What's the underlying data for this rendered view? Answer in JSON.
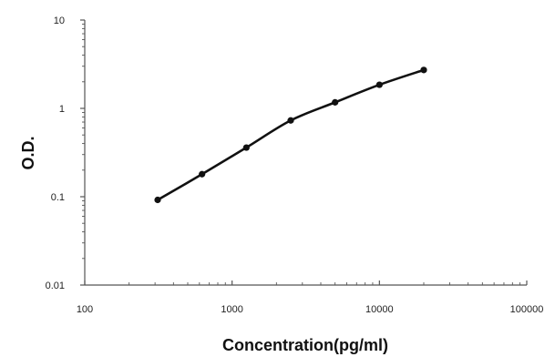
{
  "chart_data": {
    "type": "scatter",
    "title": "",
    "xlabel": "Concentration(pg/ml)",
    "ylabel": "O.D.",
    "x_scale": "log",
    "y_scale": "log",
    "xlim": [
      100,
      100000
    ],
    "ylim": [
      0.01,
      10
    ],
    "x_ticks": [
      {
        "value": 100,
        "label": "100"
      },
      {
        "value": 1000,
        "label": "1000"
      },
      {
        "value": 10000,
        "label": "10000"
      },
      {
        "value": 100000,
        "label": "100000"
      }
    ],
    "y_ticks": [
      {
        "value": 0.01,
        "label": "0.01"
      },
      {
        "value": 0.1,
        "label": "0.1"
      },
      {
        "value": 1,
        "label": "1"
      },
      {
        "value": 10,
        "label": "10"
      }
    ],
    "grid": false,
    "legend": "none",
    "series": [
      {
        "x": [
          312.5,
          625,
          1250,
          2500,
          5000,
          10000,
          20000
        ],
        "y": [
          0.092,
          0.18,
          0.36,
          0.73,
          1.17,
          1.85,
          2.72
        ],
        "color": "#111111",
        "marker": "circle",
        "trendline": true
      }
    ]
  }
}
